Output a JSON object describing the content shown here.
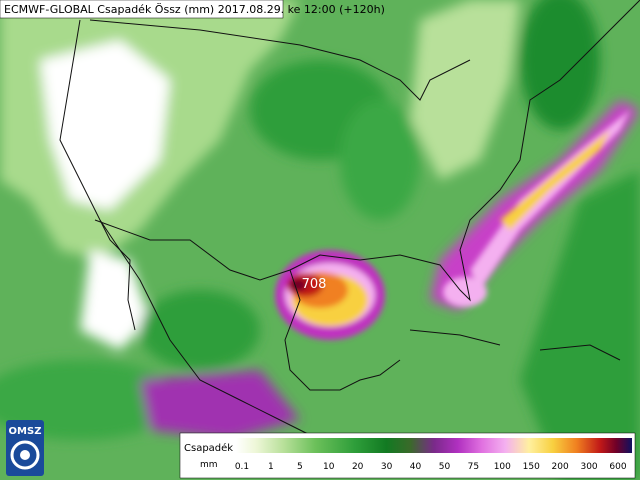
{
  "header": {
    "title": "ECMWF-GLOBAL Csapadék Össz (mm) 2017.08.29. ke 12:00 (+120h)"
  },
  "map": {
    "peak_label": "708",
    "logo": "OMSZ"
  },
  "legend": {
    "title": "Csapadék",
    "unit": "mm",
    "ticks": [
      "0.1",
      "1",
      "5",
      "10",
      "20",
      "30",
      "40",
      "50",
      "75",
      "100",
      "150",
      "200",
      "300",
      "600"
    ]
  }
}
